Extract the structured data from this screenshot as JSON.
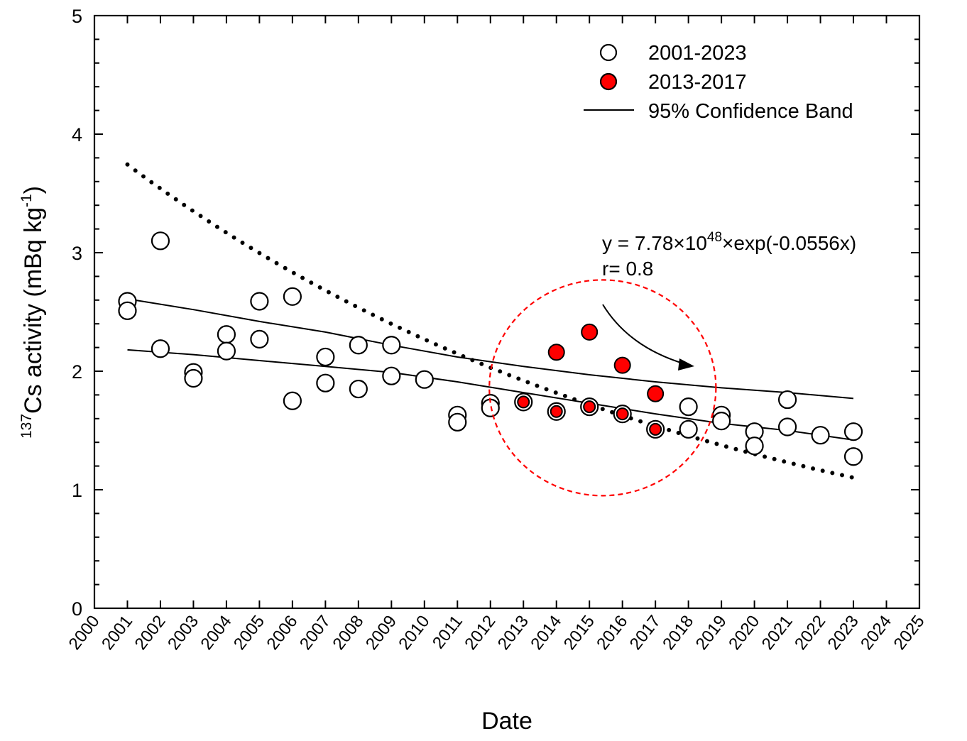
{
  "chart_data": {
    "type": "scatter",
    "title": "",
    "xlabel": "Date",
    "ylabel": {
      "superscript_prefix": "137",
      "main": "Cs activity (mBq kg",
      "superscript_unit": "-1",
      "suffix": ")"
    },
    "xlim": [
      2000,
      2025
    ],
    "ylim": [
      0,
      5
    ],
    "x_ticks": [
      "2000",
      "2001",
      "2002",
      "2003",
      "2004",
      "2005",
      "2006",
      "2007",
      "2008",
      "2009",
      "2010",
      "2011",
      "2012",
      "2013",
      "2014",
      "2015",
      "2016",
      "2017",
      "2018",
      "2019",
      "2020",
      "2021",
      "2022",
      "2023",
      "2024",
      "2025"
    ],
    "y_ticks": [
      "0",
      "1",
      "2",
      "3",
      "4",
      "5"
    ],
    "grid": false,
    "legend_position": "top-right",
    "legend": [
      {
        "label": "2001-2023",
        "marker": "open-circle"
      },
      {
        "label": "2013-2017",
        "marker": "red-filled-circle"
      },
      {
        "label": "95% Confidence Band",
        "marker": "line"
      }
    ],
    "series": [
      {
        "name": "2001-2023",
        "style": "open-circle",
        "points": [
          [
            2001,
            2.59
          ],
          [
            2001,
            2.51
          ],
          [
            2002,
            3.1
          ],
          [
            2002,
            2.19
          ],
          [
            2003,
            1.99
          ],
          [
            2003,
            1.94
          ],
          [
            2004,
            2.31
          ],
          [
            2004,
            2.17
          ],
          [
            2005,
            2.59
          ],
          [
            2005,
            2.27
          ],
          [
            2006,
            2.63
          ],
          [
            2006,
            1.75
          ],
          [
            2007,
            2.12
          ],
          [
            2007,
            1.9
          ],
          [
            2008,
            2.22
          ],
          [
            2008,
            1.85
          ],
          [
            2009,
            2.22
          ],
          [
            2009,
            1.96
          ],
          [
            2010,
            1.93
          ],
          [
            2011,
            1.63
          ],
          [
            2011,
            1.57
          ],
          [
            2012,
            1.73
          ],
          [
            2012,
            1.69
          ],
          [
            2013,
            1.74
          ],
          [
            2014,
            1.66
          ],
          [
            2015,
            1.7
          ],
          [
            2016,
            1.64
          ],
          [
            2017,
            1.51
          ],
          [
            2018,
            1.7
          ],
          [
            2018,
            1.51
          ],
          [
            2019,
            1.63
          ],
          [
            2019,
            1.58
          ],
          [
            2020,
            1.49
          ],
          [
            2020,
            1.37
          ],
          [
            2021,
            1.76
          ],
          [
            2021,
            1.53
          ],
          [
            2022,
            1.46
          ],
          [
            2023,
            1.49
          ],
          [
            2023,
            1.28
          ]
        ]
      },
      {
        "name": "2013-2017",
        "style": "red-filled-circle",
        "color": "#ff0000",
        "points": [
          [
            2013,
            1.74,
            "small"
          ],
          [
            2014,
            2.16,
            "large"
          ],
          [
            2014,
            1.66,
            "small"
          ],
          [
            2015,
            2.33,
            "large"
          ],
          [
            2015,
            1.7,
            "small"
          ],
          [
            2016,
            2.05,
            "large"
          ],
          [
            2016,
            1.64,
            "small"
          ],
          [
            2017,
            1.81,
            "large"
          ],
          [
            2017,
            1.51,
            "small"
          ]
        ]
      },
      {
        "name": "fit",
        "style": "dotted-line",
        "x": [
          2001,
          2023
        ],
        "fit": {
          "a": 7.78e+48,
          "b": -0.0556
        }
      },
      {
        "name": "95% Confidence Band upper",
        "style": "solid-line",
        "points": [
          [
            2001,
            2.61
          ],
          [
            2003,
            2.52
          ],
          [
            2005,
            2.42
          ],
          [
            2007,
            2.33
          ],
          [
            2009,
            2.22
          ],
          [
            2011,
            2.12
          ],
          [
            2013,
            2.04
          ],
          [
            2015,
            1.97
          ],
          [
            2017,
            1.91
          ],
          [
            2019,
            1.86
          ],
          [
            2021,
            1.82
          ],
          [
            2023,
            1.77
          ]
        ]
      },
      {
        "name": "95% Confidence Band lower",
        "style": "solid-line",
        "points": [
          [
            2001,
            2.18
          ],
          [
            2003,
            2.14
          ],
          [
            2005,
            2.09
          ],
          [
            2007,
            2.04
          ],
          [
            2009,
            1.99
          ],
          [
            2011,
            1.91
          ],
          [
            2013,
            1.82
          ],
          [
            2015,
            1.73
          ],
          [
            2017,
            1.64
          ],
          [
            2019,
            1.56
          ],
          [
            2021,
            1.5
          ],
          [
            2023,
            1.42
          ]
        ]
      }
    ],
    "annotations": {
      "equation": {
        "prefix": "y = 7.78×10",
        "superscript": "48",
        "suffix": "×exp(-0.0556x)"
      },
      "r_value": "r= 0.8",
      "highlight_circle": {
        "color": "#ff0000",
        "style": "dashed",
        "center": [
          2015.4,
          1.86
        ],
        "ry_data": 0.91
      }
    }
  }
}
